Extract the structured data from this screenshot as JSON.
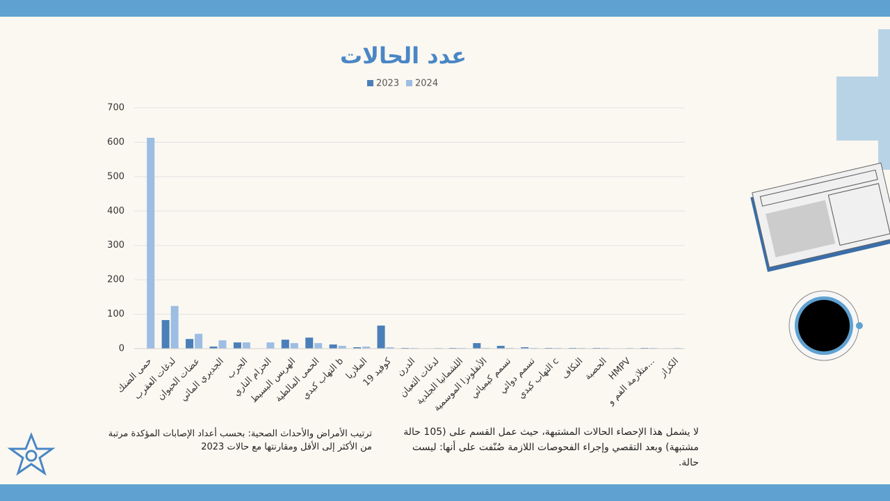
{
  "chart_data": {
    "type": "bar",
    "title": "عدد الحالات",
    "categories": [
      "حمى الضنك",
      "لدغات العقرب",
      "عضات الحيوان",
      "الجديري المائي",
      "الجرب",
      "الحزام الناري",
      "الهربس البسيط",
      "الحمى المالطية",
      "التهاب كبدي b",
      "الملاريا",
      "كوفيد 19",
      "الدرن",
      "لدغات الثعبان",
      "اللشمانيا الجلدية",
      "الأنفلونزا الموسمية",
      "تسمم كيميائي",
      "تسمم دوائي",
      "التهاب كبدي c",
      "النكاف",
      "الحصبة",
      "HMPV",
      "متلازمة الفم و...",
      "الكزاز"
    ],
    "series": [
      {
        "name": "2023",
        "color": "#4a7fb8",
        "values": [
          0,
          83,
          28,
          6,
          18,
          0,
          26,
          32,
          12,
          4,
          67,
          2,
          0,
          2,
          16,
          8,
          4,
          2,
          2,
          2,
          0,
          2,
          0
        ]
      },
      {
        "name": "2024",
        "color": "#9dbde3",
        "values": [
          613,
          124,
          43,
          24,
          18,
          18,
          16,
          16,
          8,
          6,
          4,
          2,
          2,
          2,
          2,
          2,
          2,
          2,
          2,
          2,
          2,
          2,
          2
        ]
      }
    ],
    "ylim": [
      0,
      700
    ],
    "yticks": [
      0,
      100,
      200,
      300,
      400,
      500,
      600,
      700
    ],
    "grid": true,
    "legend": "top",
    "annotations": [
      "لا يشمل هذا الإحصاء الحالات المشتبهة، حيث عمل القسم على (105 حالة مشتبهة) وبعد التقصي وإجراء الفحوصات اللازمة صُنّفت على أنها: ليست حالة.",
      "ترتيب الأمراض والأحداث الصحية: بحسب أعداد الإصابات المؤكدة مرتبة من الأكثر إلى الأقل ومقارنتها مع حالات 2023"
    ]
  }
}
